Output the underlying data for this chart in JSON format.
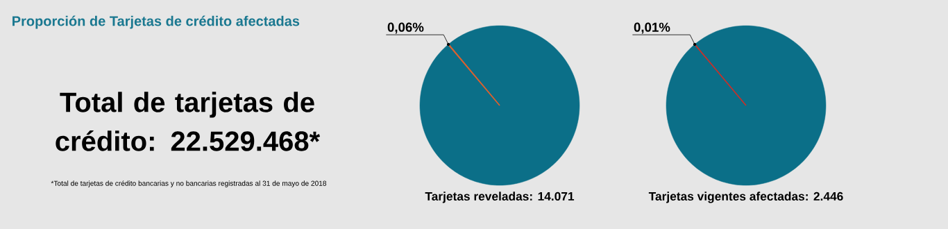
{
  "chart_data": [
    {
      "type": "other",
      "title": "Proporción de Tarjetas de crédito afectadas",
      "annotations": [
        "Total de tarjetas de crédito: 22.529.468*",
        "*Total de tarjetas de crédito bancarias y no bancarias registradas al 31 de mayo de 2018"
      ]
    },
    {
      "type": "pie",
      "title": "Tarjetas reveladas: 14.071",
      "categories": [
        null,
        null
      ],
      "values": [
        0.06,
        99.94
      ],
      "colors": [
        "#e0602c",
        "#0b6f88"
      ],
      "value_labels": [
        "0,06%",
        null
      ]
    },
    {
      "type": "pie",
      "title": "Tarjetas vigentes afectadas: 2.446",
      "categories": [
        null,
        null
      ],
      "values": [
        0.01,
        99.99
      ],
      "colors": [
        "#c8302a",
        "#0b6f88"
      ],
      "value_labels": [
        "0,01%",
        null
      ]
    }
  ]
}
